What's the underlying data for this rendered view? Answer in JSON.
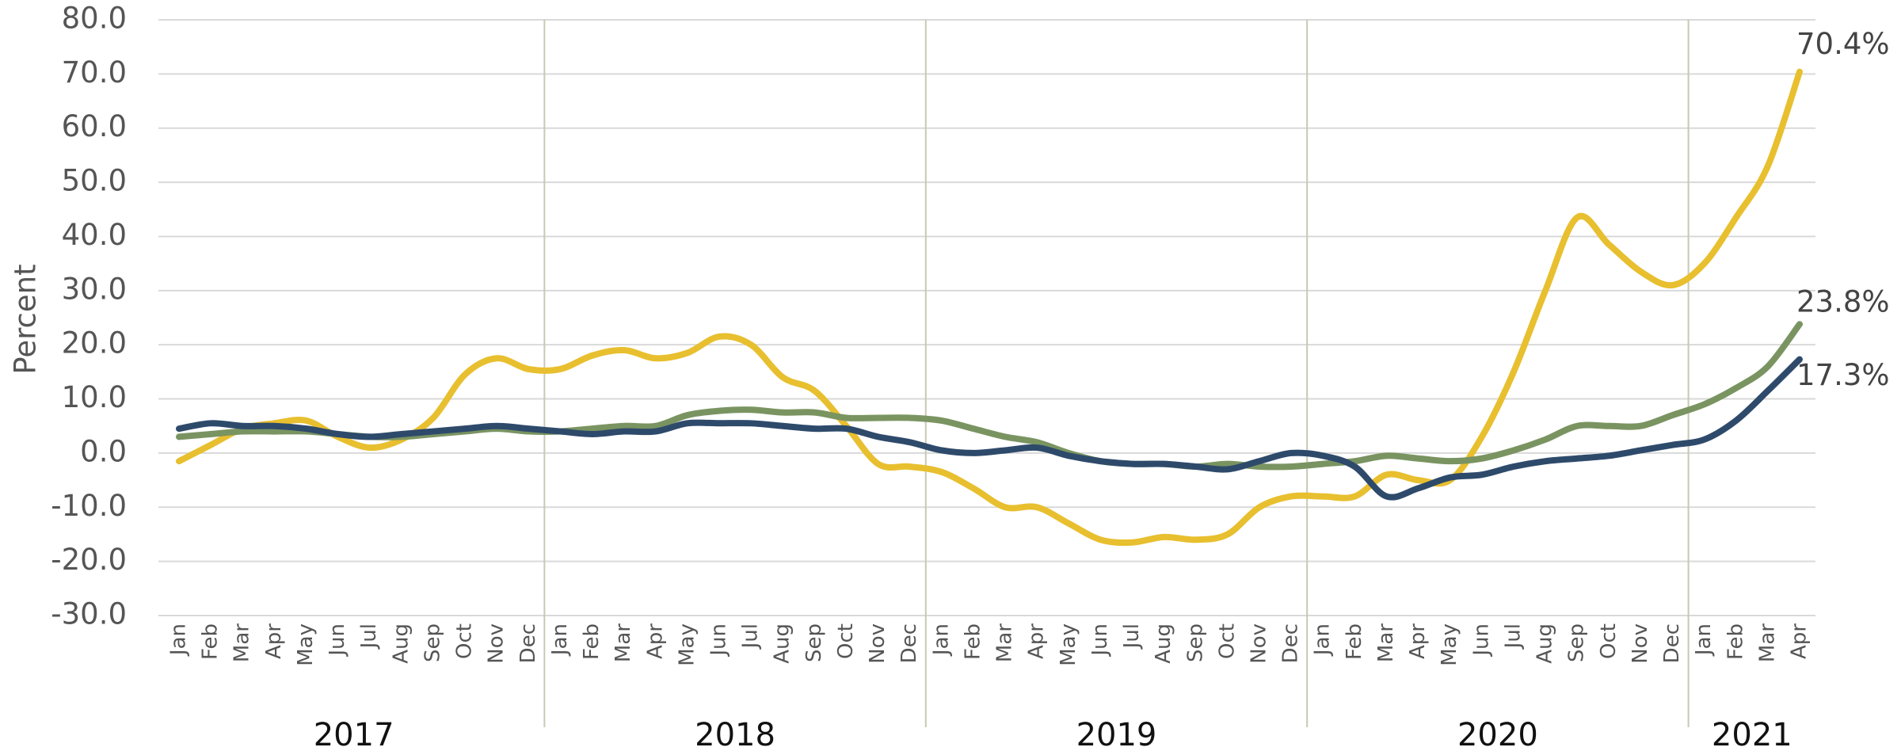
{
  "chart_data": {
    "type": "line",
    "y_label": "Percent",
    "ylim": [
      -30,
      80
    ],
    "yticks": [
      {
        "value": -30,
        "label": "-30.0"
      },
      {
        "value": -20,
        "label": "-20.0"
      },
      {
        "value": -10,
        "label": "-10.0"
      },
      {
        "value": 0,
        "label": "0.0"
      },
      {
        "value": 10,
        "label": "10.0"
      },
      {
        "value": 20,
        "label": "20.0"
      },
      {
        "value": 30,
        "label": "30.0"
      },
      {
        "value": 40,
        "label": "40.0"
      },
      {
        "value": 50,
        "label": "50.0"
      },
      {
        "value": 60,
        "label": "60.0"
      },
      {
        "value": 70,
        "label": "70.0"
      },
      {
        "value": 80,
        "label": "80.0"
      }
    ],
    "grid": true,
    "year_groups": [
      {
        "label": "2017",
        "months": [
          "Jan",
          "Feb",
          "Mar",
          "Apr",
          "May",
          "Jun",
          "Jul",
          "Aug",
          "Sep",
          "Oct",
          "Nov",
          "Dec"
        ]
      },
      {
        "label": "2018",
        "months": [
          "Jan",
          "Feb",
          "Mar",
          "Apr",
          "May",
          "Jun",
          "Jul",
          "Aug",
          "Sep",
          "Oct",
          "Nov",
          "Dec"
        ]
      },
      {
        "label": "2019",
        "months": [
          "Jan",
          "Feb",
          "Mar",
          "Apr",
          "May",
          "Jun",
          "Jul",
          "Aug",
          "Sep",
          "Oct",
          "Nov",
          "Dec"
        ]
      },
      {
        "label": "2020",
        "months": [
          "Jan",
          "Feb",
          "Mar",
          "Apr",
          "May",
          "Jun",
          "Jul",
          "Aug",
          "Sep",
          "Oct",
          "Nov",
          "Dec"
        ]
      },
      {
        "label": "2021",
        "months": [
          "Jan",
          "Feb",
          "Mar",
          "Apr"
        ]
      }
    ],
    "series": [
      {
        "color": "#e8bf2e",
        "values": [
          -1.5,
          1.5,
          4.5,
          5.5,
          6,
          3,
          1,
          2.5,
          6.5,
          14.5,
          17.5,
          15.5,
          15.5,
          18,
          19,
          17.5,
          18.5,
          21.5,
          20,
          14,
          11.5,
          5,
          -2,
          -2.5,
          -3.5,
          -6.5,
          -10,
          -10,
          -13,
          -16,
          -16.5,
          -15.5,
          -16,
          -15,
          -10,
          -8,
          -8,
          -8,
          -4,
          -5,
          -5,
          3,
          15,
          30,
          43.5,
          38.5,
          33.5,
          31,
          35,
          43.5,
          53,
          70.4
        ],
        "value_labels": [
          null,
          null,
          null,
          null,
          null,
          null,
          null,
          null,
          null,
          null,
          null,
          null,
          null,
          null,
          null,
          null,
          null,
          null,
          null,
          null,
          null,
          null,
          null,
          null,
          null,
          null,
          null,
          null,
          null,
          null,
          null,
          null,
          null,
          null,
          null,
          null,
          null,
          null,
          null,
          null,
          null,
          null,
          null,
          null,
          null,
          null,
          null,
          null,
          null,
          null,
          null,
          "70.4%"
        ]
      },
      {
        "color": "#7a9461",
        "values": [
          3,
          3.5,
          4,
          4,
          4,
          3.5,
          3,
          3,
          3.5,
          4,
          4.5,
          4,
          4,
          4.5,
          5,
          5,
          7,
          7.8,
          8,
          7.5,
          7.5,
          6.5,
          6.5,
          6.5,
          6,
          4.5,
          3,
          2,
          0,
          -1.5,
          -2,
          -2,
          -2.5,
          -2,
          -2.5,
          -2.5,
          -2,
          -1.5,
          -0.5,
          -1,
          -1.5,
          -1,
          0.5,
          2.5,
          5,
          5,
          5,
          7,
          9,
          12,
          16,
          23.8
        ],
        "value_labels": [
          null,
          null,
          null,
          null,
          null,
          null,
          null,
          null,
          null,
          null,
          null,
          null,
          null,
          null,
          null,
          null,
          null,
          null,
          null,
          null,
          null,
          null,
          null,
          null,
          null,
          null,
          null,
          null,
          null,
          null,
          null,
          null,
          null,
          null,
          null,
          null,
          null,
          null,
          null,
          null,
          null,
          null,
          null,
          null,
          null,
          null,
          null,
          null,
          null,
          null,
          null,
          "23.8%"
        ]
      },
      {
        "color": "#2e4a6b",
        "values": [
          4.5,
          5.5,
          5,
          5,
          4.5,
          3.5,
          3,
          3.5,
          4,
          4.5,
          5,
          4.5,
          4,
          3.5,
          4,
          4,
          5.5,
          5.5,
          5.5,
          5,
          4.5,
          4.5,
          3,
          2,
          0.5,
          0,
          0.5,
          1,
          -0.5,
          -1.5,
          -2,
          -2,
          -2.5,
          -3,
          -1.5,
          0,
          -0.5,
          -2.5,
          -8,
          -6.5,
          -4.5,
          -4,
          -2.5,
          -1.5,
          -1,
          -0.5,
          0.5,
          1.5,
          2.5,
          6,
          11.5,
          17.3
        ],
        "value_labels": [
          null,
          null,
          null,
          null,
          null,
          null,
          null,
          null,
          null,
          null,
          null,
          null,
          null,
          null,
          null,
          null,
          null,
          null,
          null,
          null,
          null,
          null,
          null,
          null,
          null,
          null,
          null,
          null,
          null,
          null,
          null,
          null,
          null,
          null,
          null,
          null,
          null,
          null,
          null,
          null,
          null,
          null,
          null,
          null,
          null,
          null,
          null,
          null,
          null,
          null,
          null,
          "17.3%"
        ]
      }
    ]
  }
}
